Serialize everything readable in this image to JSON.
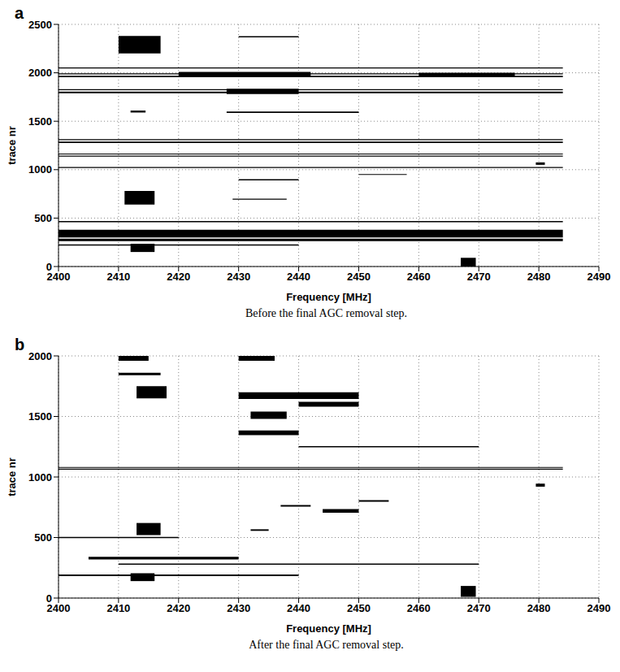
{
  "chart_data": [
    {
      "type": "heatmap",
      "panel": "a",
      "caption": "Before the final AGC removal step.",
      "x_label": "Frequency [MHz]",
      "y_label": "trace nr",
      "color": "#000000",
      "grid": true,
      "xlim": [
        2400,
        2490
      ],
      "xticks": [
        2400,
        2410,
        2420,
        2430,
        2440,
        2450,
        2460,
        2470,
        2480,
        2490
      ],
      "ylim": [
        0,
        2500
      ],
      "yticks": [
        0,
        500,
        1000,
        1500,
        2000,
        2500
      ],
      "cells": [
        {
          "x": [
            2400,
            2484
          ],
          "y": [
            300,
            380
          ]
        },
        {
          "x": [
            2400,
            2484
          ],
          "y": [
            262,
            288
          ]
        },
        {
          "x": [
            2400,
            2484
          ],
          "y": [
            458,
            470
          ]
        },
        {
          "x": [
            2400,
            2440
          ],
          "y": [
            215,
            228
          ]
        },
        {
          "x": [
            2412,
            2416
          ],
          "y": [
            150,
            235
          ]
        },
        {
          "x": [
            2467,
            2469.5
          ],
          "y": [
            0,
            90
          ]
        },
        {
          "x": [
            2411,
            2416
          ],
          "y": [
            640,
            780
          ]
        },
        {
          "x": [
            2429,
            2438
          ],
          "y": [
            690,
            700
          ]
        },
        {
          "x": [
            2430,
            2440
          ],
          "y": [
            890,
            902
          ]
        },
        {
          "x": [
            2450,
            2458
          ],
          "y": [
            945,
            955
          ]
        },
        {
          "x": [
            2479.5,
            2481
          ],
          "y": [
            1050,
            1075
          ]
        },
        {
          "x": [
            2400,
            2484
          ],
          "y": [
            1018,
            1028
          ]
        },
        {
          "x": [
            2400,
            2484
          ],
          "y": [
            1135,
            1145
          ]
        },
        {
          "x": [
            2400,
            2484
          ],
          "y": [
            1158,
            1166
          ]
        },
        {
          "x": [
            2400,
            2484
          ],
          "y": [
            1275,
            1290
          ]
        },
        {
          "x": [
            2400,
            2484
          ],
          "y": [
            1305,
            1315
          ]
        },
        {
          "x": [
            2412,
            2414.5
          ],
          "y": [
            1590,
            1610
          ]
        },
        {
          "x": [
            2428,
            2450
          ],
          "y": [
            1585,
            1600
          ]
        },
        {
          "x": [
            2400,
            2484
          ],
          "y": [
            1790,
            1805
          ]
        },
        {
          "x": [
            2400,
            2484
          ],
          "y": [
            1820,
            1830
          ]
        },
        {
          "x": [
            2428,
            2440
          ],
          "y": [
            1780,
            1835
          ]
        },
        {
          "x": [
            2400,
            2484
          ],
          "y": [
            1955,
            1970
          ]
        },
        {
          "x": [
            2400,
            2484
          ],
          "y": [
            1985,
            1995
          ]
        },
        {
          "x": [
            2420,
            2442
          ],
          "y": [
            1960,
            2010
          ]
        },
        {
          "x": [
            2460,
            2476
          ],
          "y": [
            1960,
            2000
          ]
        },
        {
          "x": [
            2400,
            2484
          ],
          "y": [
            2045,
            2055
          ]
        },
        {
          "x": [
            2410,
            2417
          ],
          "y": [
            2200,
            2380
          ]
        },
        {
          "x": [
            2430,
            2440
          ],
          "y": [
            2365,
            2378
          ]
        }
      ]
    },
    {
      "type": "heatmap",
      "panel": "b",
      "caption": "After the final AGC removal step.",
      "x_label": "Frequency [MHz]",
      "y_label": "trace nr",
      "color": "#000000",
      "grid": true,
      "xlim": [
        2400,
        2490
      ],
      "xticks": [
        2400,
        2410,
        2420,
        2430,
        2440,
        2450,
        2460,
        2470,
        2480,
        2490
      ],
      "ylim": [
        0,
        2000
      ],
      "yticks": [
        0,
        500,
        1000,
        1500,
        2000
      ],
      "cells": [
        {
          "x": [
            2467,
            2469.5
          ],
          "y": [
            10,
            100
          ]
        },
        {
          "x": [
            2412,
            2416
          ],
          "y": [
            140,
            205
          ]
        },
        {
          "x": [
            2400,
            2440
          ],
          "y": [
            182,
            195
          ]
        },
        {
          "x": [
            2410,
            2470
          ],
          "y": [
            275,
            285
          ]
        },
        {
          "x": [
            2405,
            2430
          ],
          "y": [
            318,
            340
          ]
        },
        {
          "x": [
            2400,
            2420
          ],
          "y": [
            495,
            505
          ]
        },
        {
          "x": [
            2413,
            2417
          ],
          "y": [
            520,
            620
          ]
        },
        {
          "x": [
            2432,
            2435
          ],
          "y": [
            555,
            568
          ]
        },
        {
          "x": [
            2444,
            2450
          ],
          "y": [
            705,
            735
          ]
        },
        {
          "x": [
            2437,
            2442
          ],
          "y": [
            755,
            768
          ]
        },
        {
          "x": [
            2450,
            2455
          ],
          "y": [
            795,
            808
          ]
        },
        {
          "x": [
            2479.5,
            2481
          ],
          "y": [
            920,
            945
          ]
        },
        {
          "x": [
            2400,
            2484
          ],
          "y": [
            1060,
            1068
          ]
        },
        {
          "x": [
            2400,
            2484
          ],
          "y": [
            1075,
            1082
          ]
        },
        {
          "x": [
            2440,
            2470
          ],
          "y": [
            1245,
            1255
          ]
        },
        {
          "x": [
            2430,
            2440
          ],
          "y": [
            1345,
            1385
          ]
        },
        {
          "x": [
            2432,
            2438
          ],
          "y": [
            1480,
            1540
          ]
        },
        {
          "x": [
            2440,
            2450
          ],
          "y": [
            1580,
            1620
          ]
        },
        {
          "x": [
            2430,
            2450
          ],
          "y": [
            1645,
            1700
          ]
        },
        {
          "x": [
            2413,
            2418
          ],
          "y": [
            1650,
            1750
          ]
        },
        {
          "x": [
            2410,
            2417
          ],
          "y": [
            1840,
            1860
          ]
        },
        {
          "x": [
            2430,
            2436
          ],
          "y": [
            1960,
            2000
          ]
        },
        {
          "x": [
            2410,
            2415
          ],
          "y": [
            1960,
            2000
          ]
        }
      ]
    }
  ]
}
